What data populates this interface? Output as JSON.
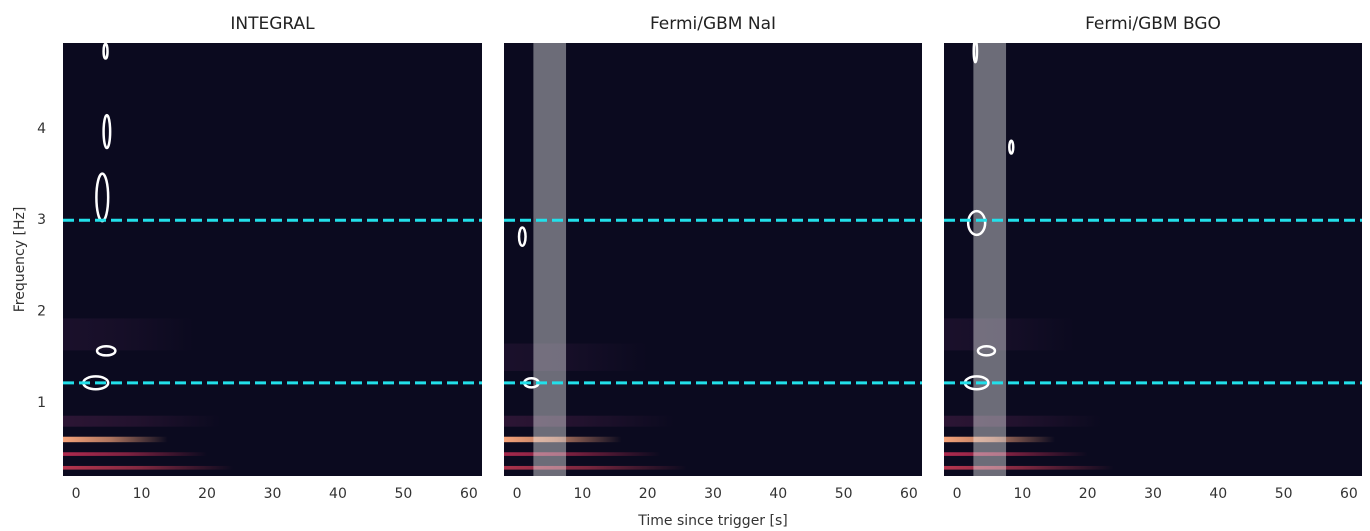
{
  "chart_data": [
    {
      "type": "heatmap",
      "title": "INTEGRAL",
      "ylabel": "Frequency [Hz]",
      "xlim": [
        -2,
        62
      ],
      "ylim": [
        0.2,
        4.94
      ],
      "xticks": [
        0,
        10,
        20,
        30,
        40,
        50,
        60
      ],
      "yticks": [
        1,
        2,
        3,
        4
      ],
      "background": "#0b0a1f",
      "hlines": [
        3.0,
        1.22
      ],
      "hline_color": "#22e0ea",
      "stripes": [
        {
          "f": 0.6,
          "df": 0.06,
          "t": [
            -2,
            14
          ],
          "intensity": 1.0,
          "color": "#f6a37a"
        },
        {
          "f": 0.44,
          "df": 0.04,
          "t": [
            -2,
            20
          ],
          "intensity": 0.8,
          "color": "#d8325a"
        },
        {
          "f": 0.29,
          "df": 0.04,
          "t": [
            -2,
            24
          ],
          "intensity": 0.8,
          "color": "#e0405a"
        },
        {
          "f": 0.8,
          "df": 0.12,
          "t": [
            -2,
            22
          ],
          "intensity": 0.35,
          "color": "#6a2b5c"
        },
        {
          "f": 1.75,
          "df": 0.35,
          "t": [
            -2,
            18
          ],
          "intensity": 0.25,
          "color": "#4a2350"
        }
      ],
      "contours": [
        {
          "t": 4.5,
          "f": 4.85,
          "dt": 0.3,
          "df": 0.08
        },
        {
          "t": 4.7,
          "f": 3.97,
          "dt": 0.5,
          "df": 0.18
        },
        {
          "t": 4.0,
          "f": 3.25,
          "dt": 0.9,
          "df": 0.26
        },
        {
          "t": 4.6,
          "f": 1.57,
          "dt": 1.4,
          "df": 0.05
        },
        {
          "t": 3.0,
          "f": 1.22,
          "dt": 1.9,
          "df": 0.07
        }
      ]
    },
    {
      "type": "heatmap",
      "title": "Fermi/GBM NaI",
      "xlabel": "Time since trigger [s]",
      "xlim": [
        -2,
        62
      ],
      "ylim": [
        0.2,
        4.94
      ],
      "xticks": [
        0,
        10,
        20,
        30,
        40,
        50,
        60
      ],
      "yticks": [
        1,
        2,
        3,
        4
      ],
      "background": "#0b0a1f",
      "hlines": [
        3.0,
        1.22
      ],
      "hline_color": "#22e0ea",
      "shade": [
        2.5,
        7.5
      ],
      "stripes": [
        {
          "f": 0.6,
          "df": 0.06,
          "t": [
            -2,
            16
          ],
          "intensity": 1.0,
          "color": "#f6a37a"
        },
        {
          "f": 0.44,
          "df": 0.04,
          "t": [
            -2,
            22
          ],
          "intensity": 0.75,
          "color": "#d8325a"
        },
        {
          "f": 0.29,
          "df": 0.04,
          "t": [
            -2,
            26
          ],
          "intensity": 0.75,
          "color": "#e0405a"
        },
        {
          "f": 0.8,
          "df": 0.12,
          "t": [
            -2,
            24
          ],
          "intensity": 0.35,
          "color": "#6a2b5c"
        },
        {
          "f": 1.5,
          "df": 0.3,
          "t": [
            -2,
            20
          ],
          "intensity": 0.25,
          "color": "#4a2350"
        }
      ],
      "contours": [
        {
          "t": 0.8,
          "f": 2.82,
          "dt": 0.5,
          "df": 0.1
        },
        {
          "t": 2.2,
          "f": 1.22,
          "dt": 1.1,
          "df": 0.05
        }
      ]
    },
    {
      "type": "heatmap",
      "title": "Fermi/GBM BGO",
      "xlim": [
        -2,
        62
      ],
      "ylim": [
        0.2,
        4.94
      ],
      "xticks": [
        0,
        10,
        20,
        30,
        40,
        50,
        60
      ],
      "yticks": [
        1,
        2,
        3,
        4
      ],
      "background": "#0b0a1f",
      "hlines": [
        3.0,
        1.22
      ],
      "hline_color": "#22e0ea",
      "shade": [
        2.5,
        7.5
      ],
      "stripes": [
        {
          "f": 0.6,
          "df": 0.06,
          "t": [
            -2,
            15
          ],
          "intensity": 1.0,
          "color": "#f6a37a"
        },
        {
          "f": 0.44,
          "df": 0.04,
          "t": [
            -2,
            20
          ],
          "intensity": 0.8,
          "color": "#d8325a"
        },
        {
          "f": 0.29,
          "df": 0.04,
          "t": [
            -2,
            24
          ],
          "intensity": 0.8,
          "color": "#e0405a"
        },
        {
          "f": 0.8,
          "df": 0.12,
          "t": [
            -2,
            22
          ],
          "intensity": 0.35,
          "color": "#6a2b5c"
        },
        {
          "f": 1.75,
          "df": 0.35,
          "t": [
            -2,
            18
          ],
          "intensity": 0.25,
          "color": "#4a2350"
        }
      ],
      "contours": [
        {
          "t": 2.8,
          "f": 4.85,
          "dt": 0.25,
          "df": 0.12
        },
        {
          "t": 8.3,
          "f": 3.8,
          "dt": 0.3,
          "df": 0.07
        },
        {
          "t": 3.0,
          "f": 2.97,
          "dt": 1.3,
          "df": 0.13
        },
        {
          "t": 4.5,
          "f": 1.57,
          "dt": 1.3,
          "df": 0.05
        },
        {
          "t": 3.0,
          "f": 1.22,
          "dt": 1.8,
          "df": 0.07
        }
      ]
    }
  ]
}
